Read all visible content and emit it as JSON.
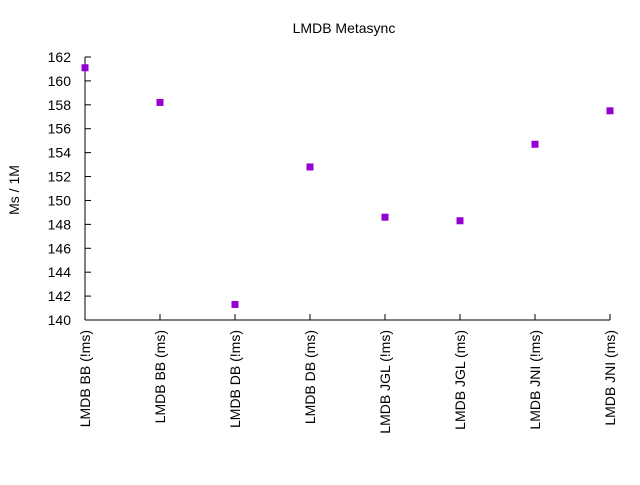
{
  "chart_data": {
    "type": "scatter",
    "title": "LMDB Metasync",
    "xlabel": "",
    "ylabel": "Ms / 1M",
    "categories": [
      "LMDB BB (!ms)",
      "LMDB BB (ms)",
      "LMDB DB (!ms)",
      "LMDB DB (ms)",
      "LMDB JGL (!ms)",
      "LMDB JGL (ms)",
      "LMDB JNI (!ms)",
      "LMDB JNI (ms)"
    ],
    "values": [
      161.1,
      158.2,
      141.3,
      152.8,
      148.6,
      148.3,
      154.7,
      157.5
    ],
    "ylim": [
      140,
      162
    ],
    "yticks": [
      140,
      142,
      144,
      146,
      148,
      150,
      152,
      154,
      156,
      158,
      160,
      162
    ],
    "grid": false,
    "legend": "none",
    "point_color": "#9400d3"
  }
}
